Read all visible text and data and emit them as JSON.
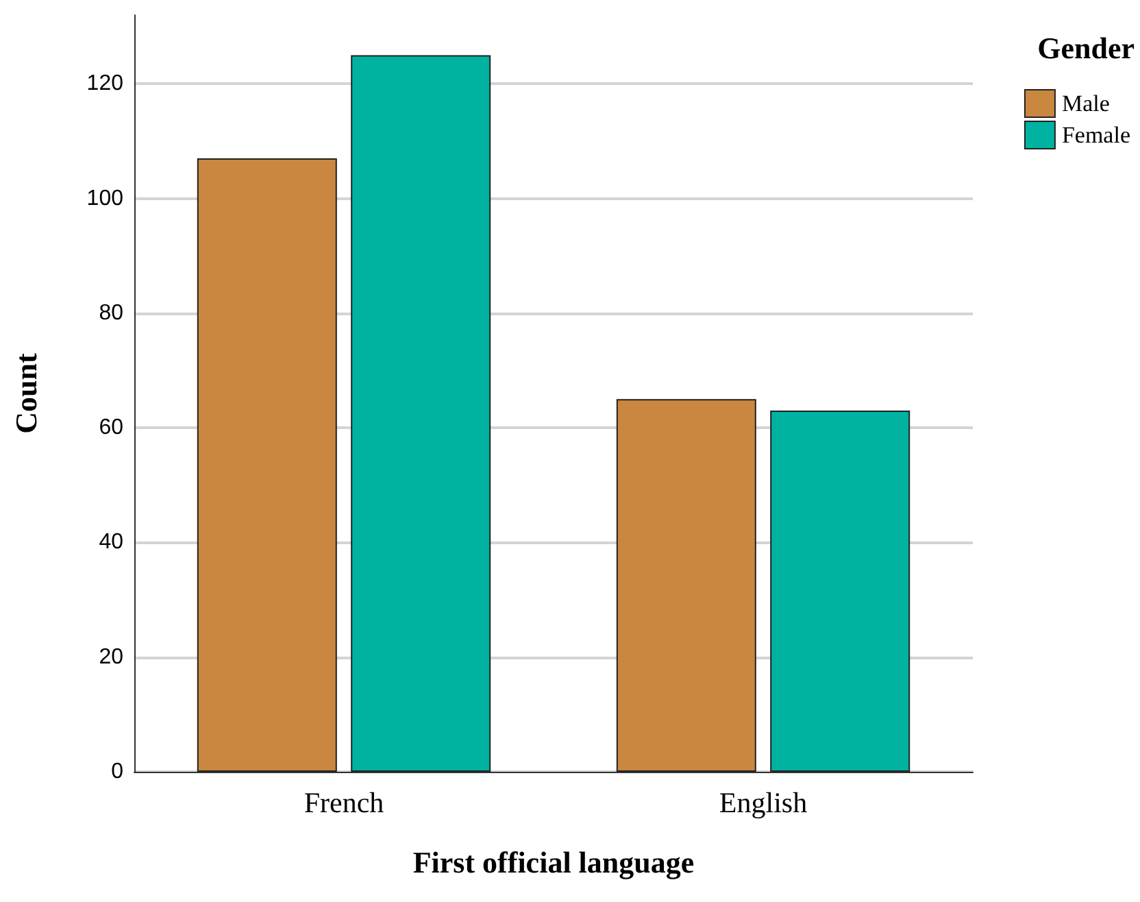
{
  "chart_data": {
    "type": "bar",
    "xlabel": "First official language",
    "ylabel": "Count",
    "legend_title": "Gender",
    "categories": [
      "French",
      "English"
    ],
    "series": [
      {
        "name": "Male",
        "color": "#c98740",
        "values": [
          107,
          65
        ]
      },
      {
        "name": "Female",
        "color": "#00b2a0",
        "values": [
          125,
          63
        ]
      }
    ],
    "ylim": [
      0,
      132
    ],
    "yticks": [
      0,
      20,
      40,
      60,
      80,
      100,
      120
    ],
    "grid": "y",
    "legend": "top right"
  }
}
